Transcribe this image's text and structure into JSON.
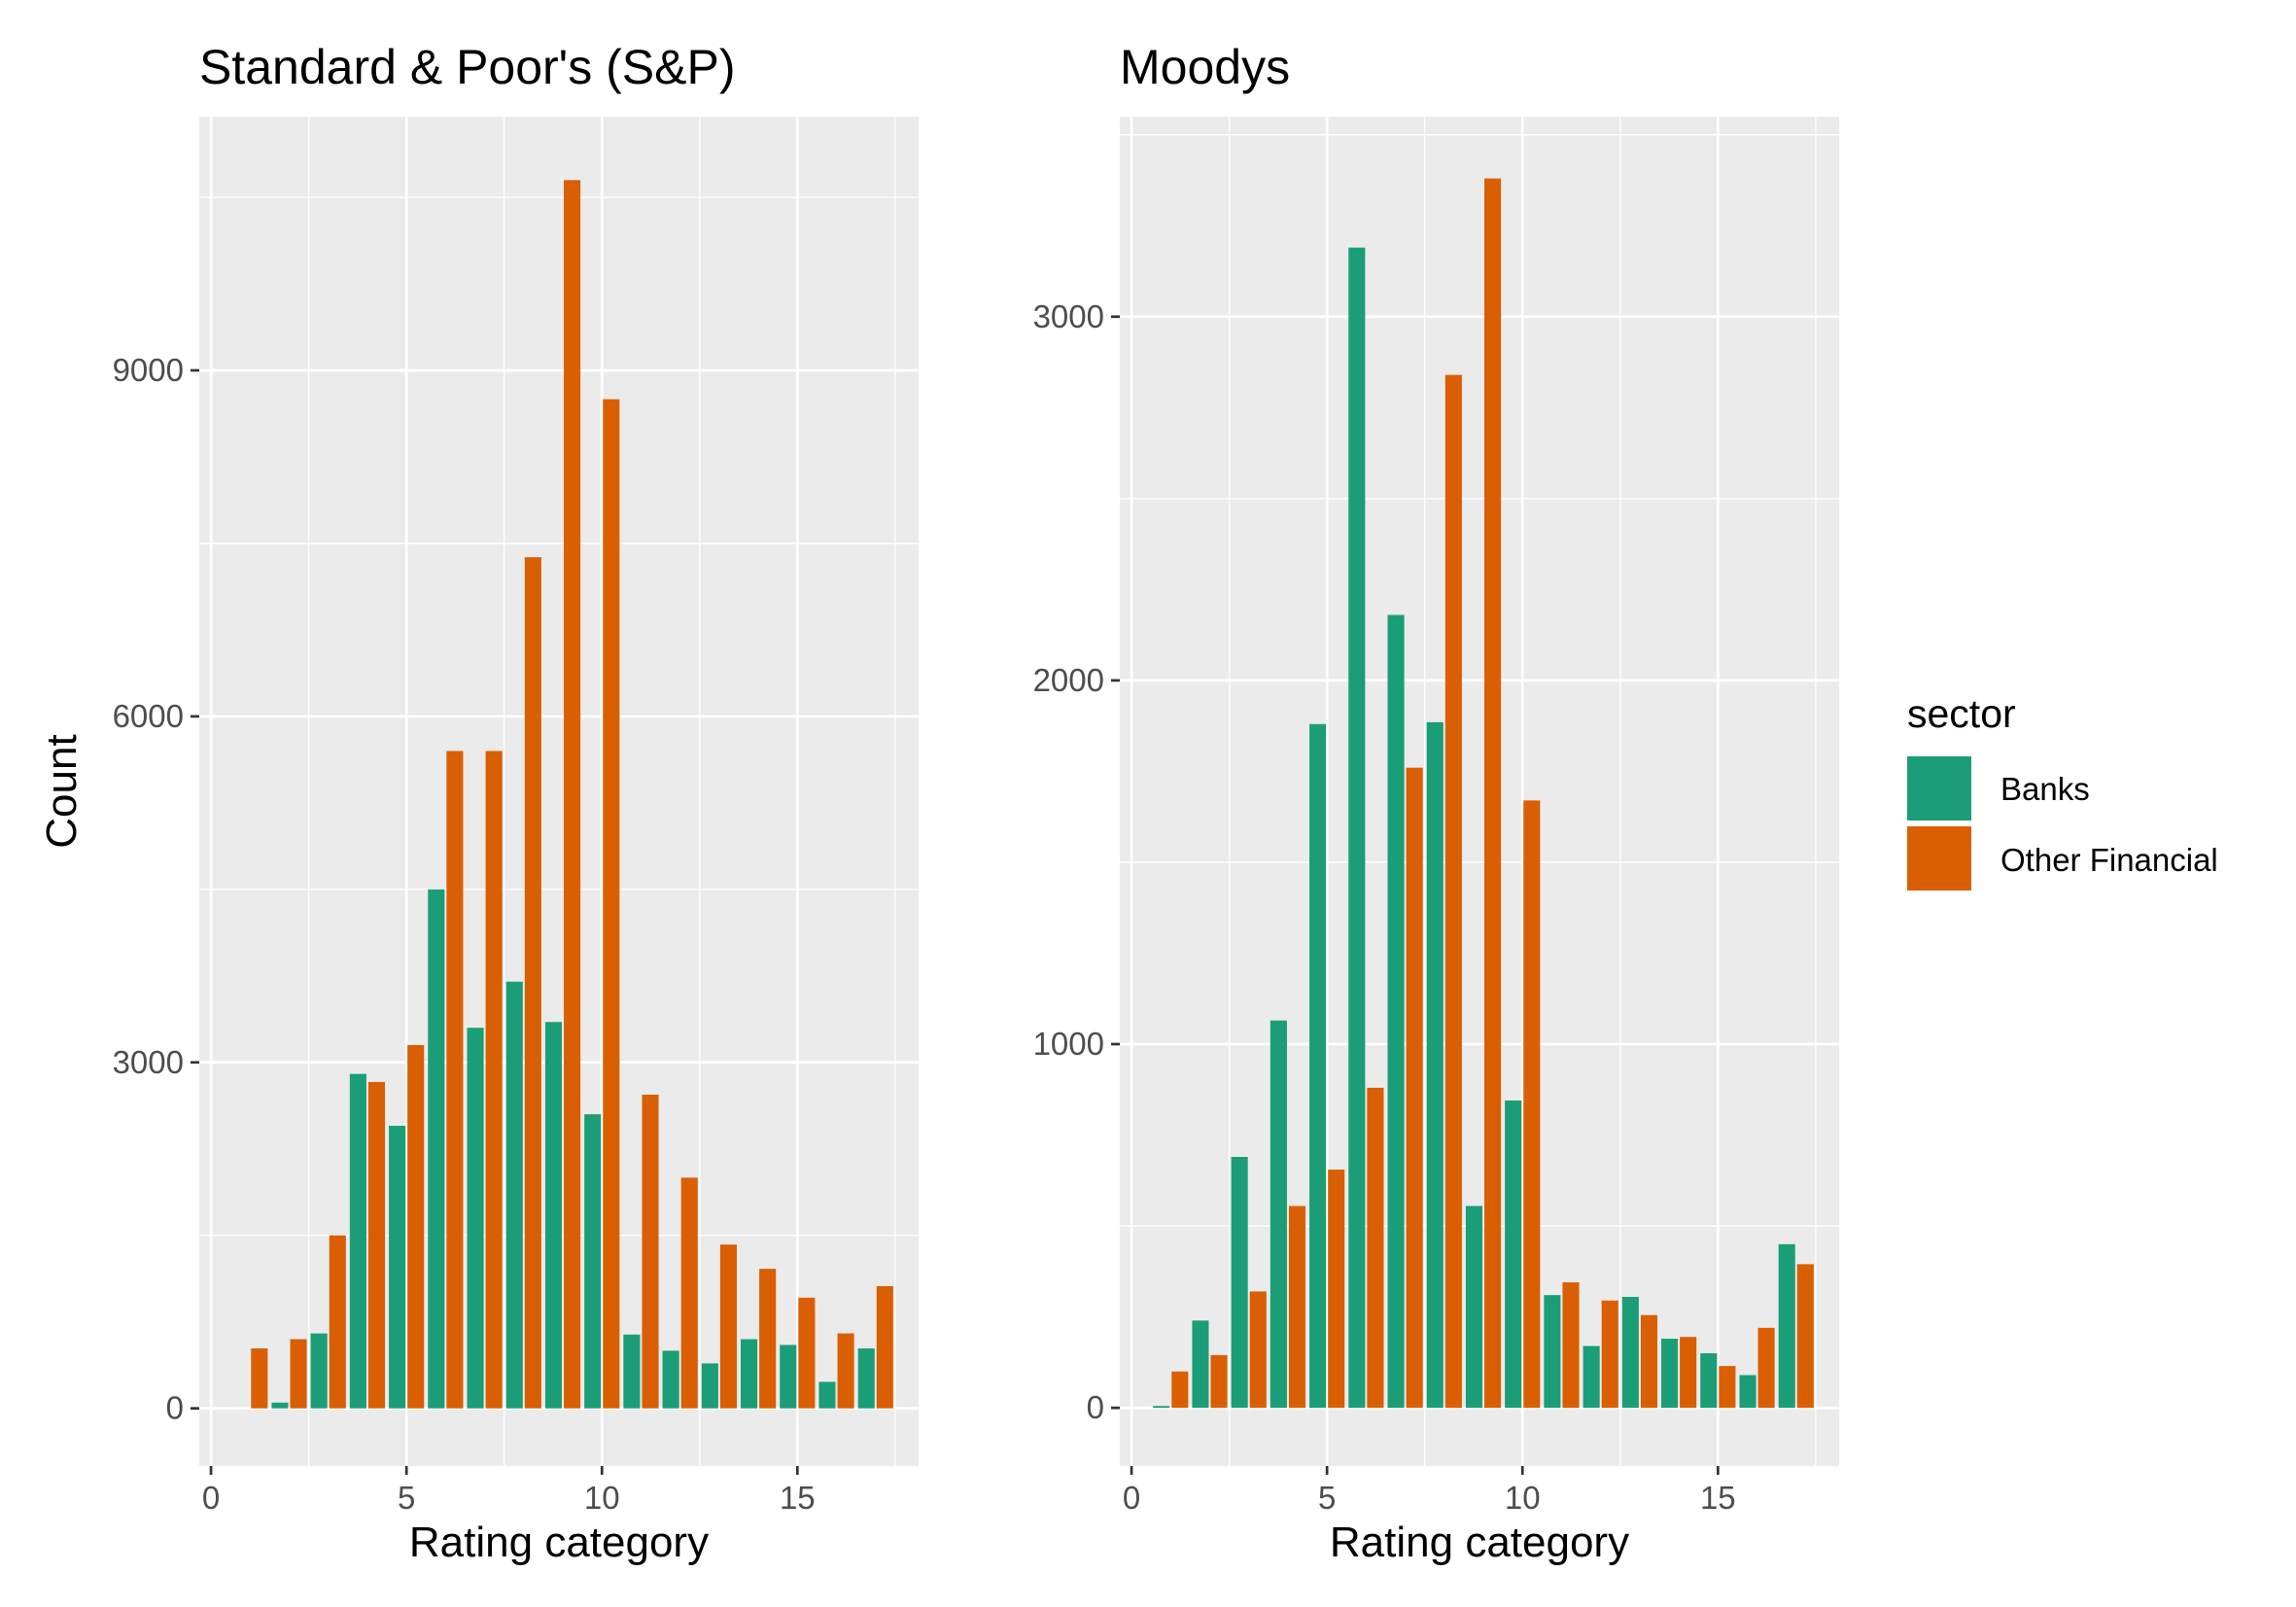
{
  "chart_data": [
    {
      "type": "bar",
      "title": "Standard & Poor's (S&P)",
      "xlabel": "Rating category",
      "ylabel": "Count",
      "xlim": [
        -0.3,
        18.1
      ],
      "ylim": [
        -500,
        11200
      ],
      "xticks": [
        0,
        5,
        10,
        15
      ],
      "xtick_labels": [
        "0",
        "5",
        "10",
        "15"
      ],
      "yticks": [
        0,
        3000,
        6000,
        9000
      ],
      "ytick_labels": [
        "0",
        "3000",
        "6000",
        "9000"
      ],
      "grid": true,
      "x": [
        1,
        2,
        3,
        4,
        5,
        6,
        7,
        8,
        9,
        10,
        11,
        12,
        13,
        14,
        15,
        16,
        17
      ],
      "series": [
        {
          "name": "Banks",
          "values": [
            0,
            50,
            650,
            2900,
            2450,
            4500,
            3300,
            3700,
            3350,
            2550,
            640,
            500,
            390,
            600,
            550,
            230,
            520
          ]
        },
        {
          "name": "Other Financial",
          "values": [
            520,
            600,
            1500,
            2830,
            3150,
            5700,
            5700,
            7380,
            10650,
            8750,
            2720,
            2000,
            1420,
            1210,
            960,
            650,
            1060
          ]
        }
      ]
    },
    {
      "type": "bar",
      "title": "Moodys",
      "xlabel": "Rating category",
      "ylabel": "",
      "xlim": [
        -0.3,
        18.1
      ],
      "ylim": [
        -160,
        3550
      ],
      "xticks": [
        0,
        5,
        10,
        15
      ],
      "xtick_labels": [
        "0",
        "5",
        "10",
        "15"
      ],
      "yticks": [
        0,
        1000,
        2000,
        3000
      ],
      "ytick_labels": [
        "0",
        "1000",
        "2000",
        "3000"
      ],
      "grid": true,
      "x": [
        1,
        2,
        3,
        4,
        5,
        6,
        7,
        8,
        9,
        10,
        11,
        12,
        13,
        14,
        15,
        16,
        17
      ],
      "series": [
        {
          "name": "Banks",
          "values": [
            5,
            240,
            690,
            1065,
            1880,
            3190,
            2180,
            1885,
            555,
            845,
            310,
            170,
            305,
            190,
            150,
            90,
            450
          ]
        },
        {
          "name": "Other Financial",
          "values": [
            100,
            145,
            320,
            555,
            655,
            880,
            1760,
            2840,
            3380,
            1670,
            345,
            295,
            255,
            195,
            115,
            220,
            395
          ]
        }
      ]
    }
  ],
  "legend": {
    "title": "sector",
    "placement": "right",
    "items": [
      {
        "label": "Banks",
        "color": "#1b9e77"
      },
      {
        "label": "Other Financial",
        "color": "#d95f02"
      }
    ]
  },
  "colors": {
    "Banks": "#1b9e77",
    "Other Financial": "#d95f02",
    "panel_background": "#ebebeb",
    "gridline": "#ffffff",
    "tick_text": "#4d4d4d"
  }
}
